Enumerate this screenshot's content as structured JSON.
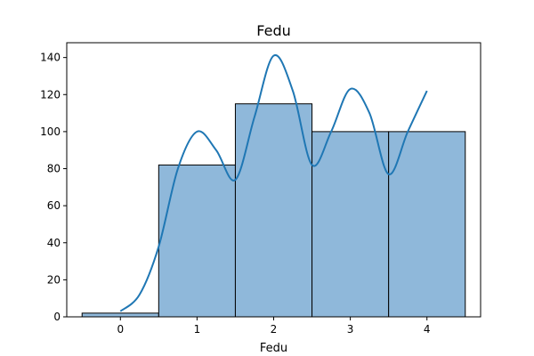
{
  "chart_data": {
    "type": "bar",
    "title": "Fedu",
    "xlabel": "Fedu",
    "ylabel": "",
    "categories": [
      "0",
      "1",
      "2",
      "3",
      "4"
    ],
    "x": [
      0,
      1,
      2,
      3,
      4
    ],
    "values": [
      2,
      82,
      115,
      100,
      100
    ],
    "bin_width": 1,
    "xlim": [
      -0.7,
      4.7
    ],
    "ylim": [
      0,
      148
    ],
    "xticks": [
      0,
      1,
      2,
      3,
      4
    ],
    "yticks": [
      0,
      20,
      40,
      60,
      80,
      100,
      120,
      140
    ],
    "grid": false,
    "legend": "none",
    "kde": {
      "x": [
        0,
        0.25,
        0.5,
        0.75,
        1,
        1.25,
        1.5,
        1.75,
        2,
        2.25,
        2.5,
        2.75,
        3,
        3.25,
        3.5,
        3.75,
        4
      ],
      "y": [
        3,
        12,
        38,
        80,
        100,
        90,
        74,
        108,
        141,
        122,
        82,
        100,
        123,
        110,
        77,
        100,
        122
      ]
    },
    "colors": {
      "bar_fill": "#8fb8da",
      "bar_edge": "#000000",
      "kde_line": "#1f77b4"
    }
  }
}
